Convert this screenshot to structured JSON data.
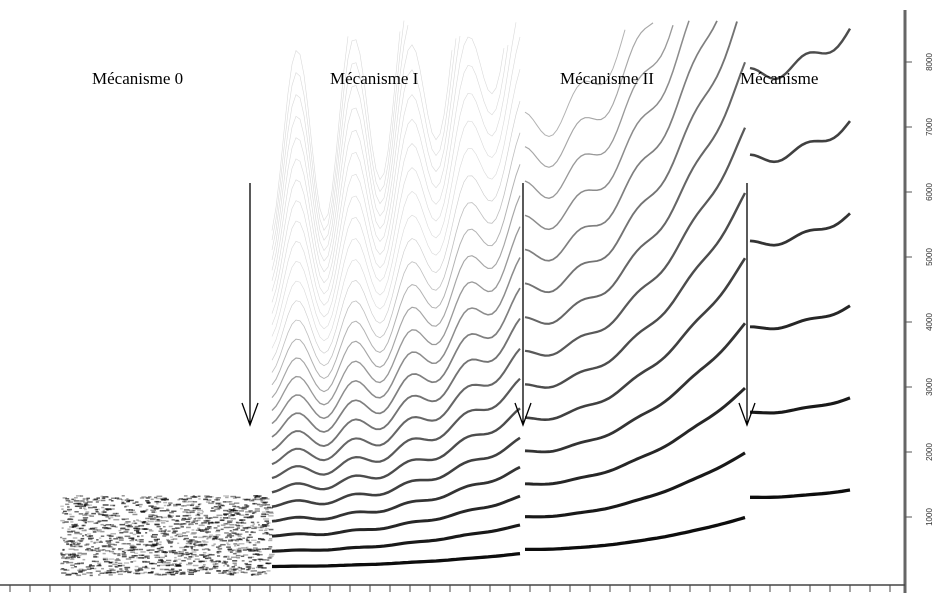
{
  "labels": [
    "Mécanisme 0",
    "Mécanisme I",
    "Mécanisme II",
    "Mécanisme"
  ],
  "axis": {
    "ticks": [
      "1000",
      "2000",
      "3000",
      "4000",
      "5000",
      "6000",
      "7000",
      "8000"
    ]
  }
}
